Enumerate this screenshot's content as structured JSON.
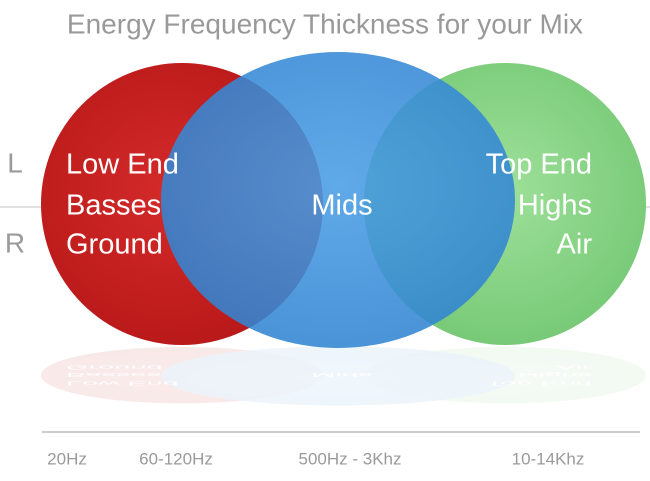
{
  "title": "Energy Frequency Thickness for your Mix",
  "channels": [
    "L",
    "R"
  ],
  "circles": [
    {
      "lines": [
        "Low End",
        "Basses",
        "Ground"
      ]
    },
    {
      "lines": [
        "Mids"
      ]
    },
    {
      "lines": [
        "Top End",
        "Highs",
        "Air"
      ]
    }
  ],
  "frequency_labels": [
    "20Hz",
    "60-120Hz",
    "500Hz - 3Khz",
    "10-14Khz"
  ]
}
